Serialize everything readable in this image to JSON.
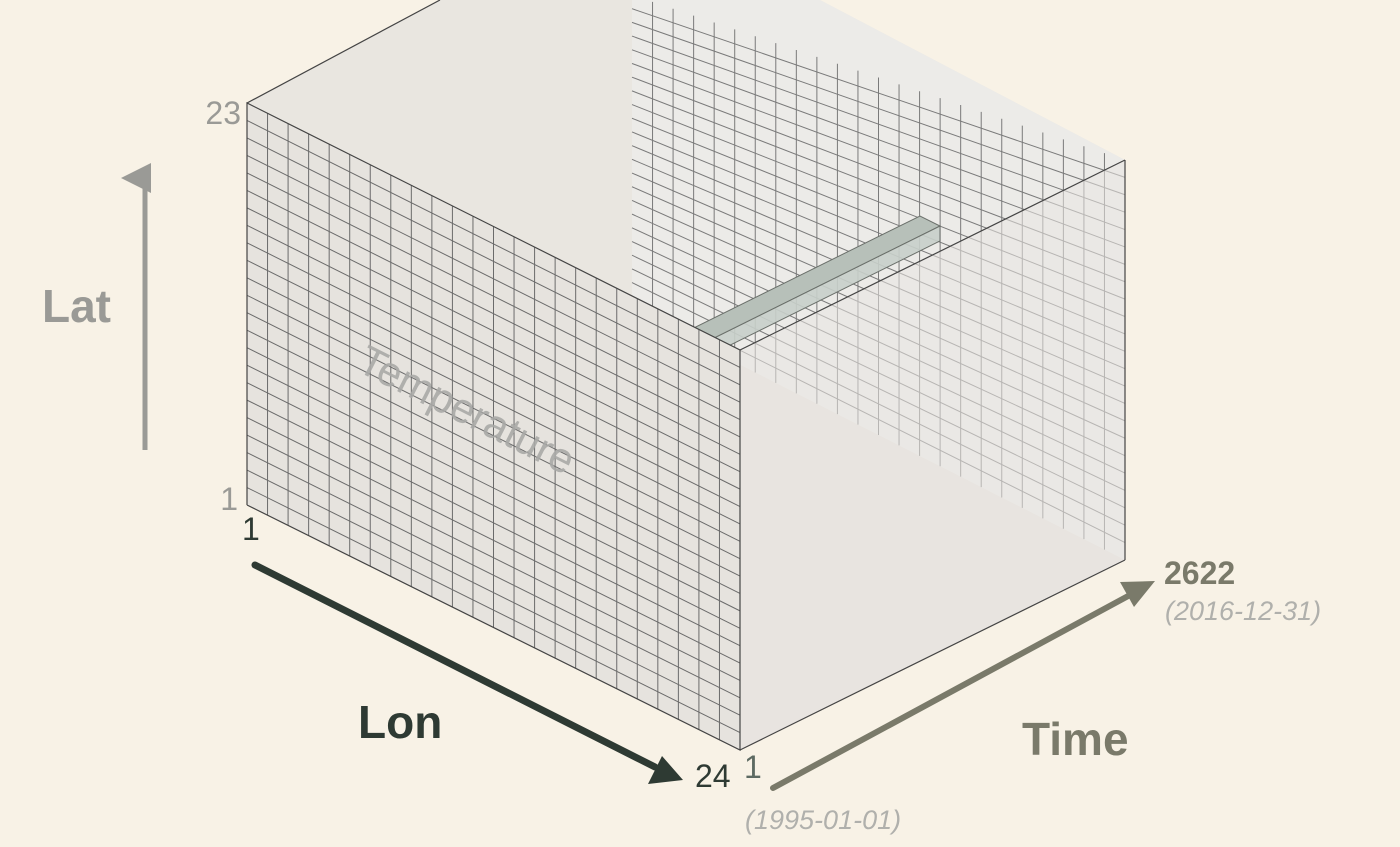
{
  "diagram": {
    "variable_label": "Temperature",
    "axes": {
      "lat": {
        "label": "Lat",
        "min_label": "1",
        "max_label": "23"
      },
      "lon": {
        "label": "Lon",
        "min_label": "1",
        "max_label": "24"
      },
      "time": {
        "label": "Time",
        "min_label": "1",
        "max_label": "2622",
        "min_date": "(1995-01-01)",
        "max_date": "(2016-12-31)"
      }
    },
    "grid": {
      "lat_cells": 23,
      "lon_cells": 24
    },
    "colors": {
      "background": "#f8f2e6",
      "front_face": "#e6e3de",
      "grid_line": "#6b6b6b",
      "edge": "#444444",
      "lon_arrow": "#2e3a33",
      "time_arrow": "#7a7a6a",
      "lat_arrow": "#9a9a96",
      "label_muted": "#9a9a96"
    }
  }
}
